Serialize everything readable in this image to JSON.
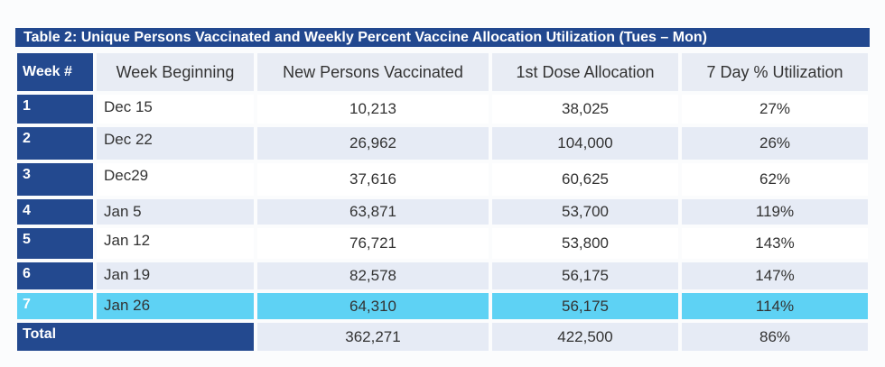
{
  "title": "Table 2: Unique Persons Vaccinated and Weekly Percent Vaccine Allocation Utilization  (Tues – Mon)",
  "headers": [
    "Week #",
    "Week Beginning",
    "New Persons Vaccinated",
    "1st Dose Allocation",
    "7 Day % Utilization"
  ],
  "rows": [
    {
      "week": "1",
      "begin": "Dec 15",
      "vaccinated": "10,213",
      "allocation": "38,025",
      "utilization": "27%"
    },
    {
      "week": "2",
      "begin": "Dec 22",
      "vaccinated": "26,962",
      "allocation": "104,000",
      "utilization": "26%"
    },
    {
      "week": "3",
      "begin": "Dec29",
      "vaccinated": "37,616",
      "allocation": "60,625",
      "utilization": "62%"
    },
    {
      "week": "4",
      "begin": "Jan 5",
      "vaccinated": "63,871",
      "allocation": "53,700",
      "utilization": "119%"
    },
    {
      "week": "5",
      "begin": "Jan 12",
      "vaccinated": "76,721",
      "allocation": "53,800",
      "utilization": "143%"
    },
    {
      "week": "6",
      "begin": "Jan 19",
      "vaccinated": "82,578",
      "allocation": "56,175",
      "utilization": "147%"
    },
    {
      "week": "7",
      "begin": "Jan 26",
      "vaccinated": "64,310",
      "allocation": "56,175",
      "utilization": "114%"
    }
  ],
  "total": {
    "label": "Total",
    "vaccinated": "362,271",
    "allocation": "422,500",
    "utilization": "86%"
  },
  "colors": {
    "dark_blue": "#23498f",
    "highlight": "#5ed2f4",
    "stripe": "#e6ebf5"
  }
}
